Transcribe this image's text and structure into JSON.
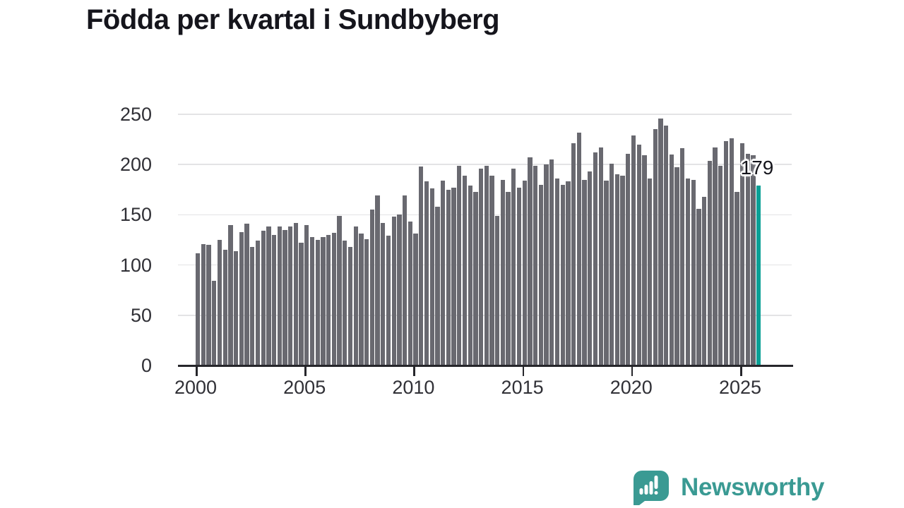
{
  "title": "Födda per kvartal i Sundbyberg",
  "colors": {
    "bar": "#696970",
    "highlight": "#0aa096",
    "gridline": "#e3e3e5",
    "axis_line": "#26262b",
    "axis_text": "#303036",
    "title_text": "#15151c",
    "logo_teal": "#3a9a93"
  },
  "chart_data": {
    "type": "bar",
    "title": "Födda per kvartal i Sundbyberg",
    "xlabel": "",
    "ylabel": "",
    "ylim": [
      0,
      250
    ],
    "grid": "horizontal",
    "y_ticks": [
      0,
      50,
      100,
      150,
      200,
      250
    ],
    "x_tick_labels": [
      "2000",
      "2005",
      "2010",
      "2015",
      "2020",
      "2025"
    ],
    "categories": [
      "2000 Q1",
      "2000 Q2",
      "2000 Q3",
      "2000 Q4",
      "2001 Q1",
      "2001 Q2",
      "2001 Q3",
      "2001 Q4",
      "2002 Q1",
      "2002 Q2",
      "2002 Q3",
      "2002 Q4",
      "2003 Q1",
      "2003 Q2",
      "2003 Q3",
      "2003 Q4",
      "2004 Q1",
      "2004 Q2",
      "2004 Q3",
      "2004 Q4",
      "2005 Q1",
      "2005 Q2",
      "2005 Q3",
      "2005 Q4",
      "2006 Q1",
      "2006 Q2",
      "2006 Q3",
      "2006 Q4",
      "2007 Q1",
      "2007 Q2",
      "2007 Q3",
      "2007 Q4",
      "2008 Q1",
      "2008 Q2",
      "2008 Q3",
      "2008 Q4",
      "2009 Q1",
      "2009 Q2",
      "2009 Q3",
      "2009 Q4",
      "2010 Q1",
      "2010 Q2",
      "2010 Q3",
      "2010 Q4",
      "2011 Q1",
      "2011 Q2",
      "2011 Q3",
      "2011 Q4",
      "2012 Q1",
      "2012 Q2",
      "2012 Q3",
      "2012 Q4",
      "2013 Q1",
      "2013 Q2",
      "2013 Q3",
      "2013 Q4",
      "2014 Q1",
      "2014 Q2",
      "2014 Q3",
      "2014 Q4",
      "2015 Q1",
      "2015 Q2",
      "2015 Q3",
      "2015 Q4",
      "2016 Q1",
      "2016 Q2",
      "2016 Q3",
      "2016 Q4",
      "2017 Q1",
      "2017 Q2",
      "2017 Q3",
      "2017 Q4",
      "2018 Q1",
      "2018 Q2",
      "2018 Q3",
      "2018 Q4",
      "2019 Q1",
      "2019 Q2",
      "2019 Q3",
      "2019 Q4",
      "2020 Q1",
      "2020 Q2",
      "2020 Q3",
      "2020 Q4",
      "2021 Q1",
      "2021 Q2",
      "2021 Q3",
      "2021 Q4",
      "2022 Q1",
      "2022 Q2",
      "2022 Q3",
      "2022 Q4",
      "2023 Q1",
      "2023 Q2",
      "2023 Q3",
      "2023 Q4",
      "2024 Q1",
      "2024 Q2",
      "2024 Q3",
      "2024 Q4",
      "2025 Q1",
      "2025 Q2",
      "2025 Q3",
      "2025 Q4"
    ],
    "values": [
      112,
      121,
      120,
      84,
      125,
      115,
      140,
      114,
      133,
      141,
      118,
      124,
      134,
      138,
      130,
      138,
      135,
      138,
      142,
      122,
      140,
      128,
      125,
      128,
      130,
      132,
      149,
      124,
      118,
      138,
      131,
      126,
      155,
      169,
      142,
      129,
      148,
      150,
      169,
      143,
      131,
      198,
      183,
      176,
      158,
      184,
      175,
      177,
      199,
      189,
      179,
      173,
      196,
      199,
      189,
      149,
      185,
      173,
      196,
      177,
      184,
      207,
      199,
      180,
      200,
      205,
      186,
      180,
      183,
      221,
      232,
      185,
      193,
      212,
      217,
      184,
      201,
      190,
      189,
      211,
      229,
      220,
      209,
      186,
      235,
      246,
      239,
      210,
      197,
      216,
      186,
      185,
      156,
      168,
      204,
      217,
      199,
      223,
      226,
      173,
      221,
      211,
      209,
      179
    ],
    "highlight": {
      "index": 103,
      "label": "179"
    },
    "legend": null
  },
  "branding": {
    "logo_text": "Newsworthy",
    "logo_icon": "newsworthy-chart-bubble-icon"
  }
}
